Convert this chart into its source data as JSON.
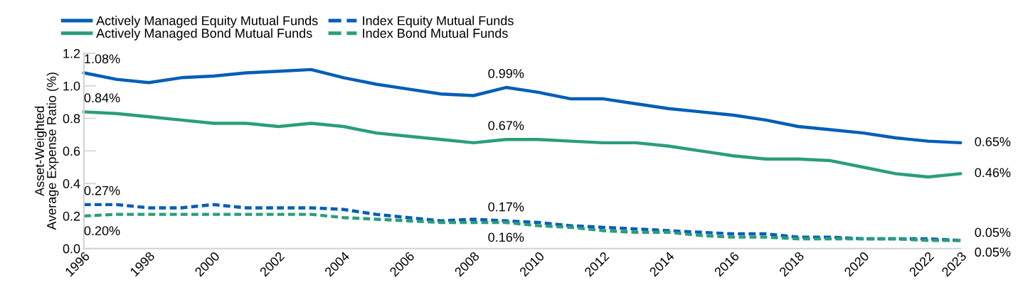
{
  "chart_data": {
    "type": "line",
    "ylabel": "Asset-Weighted\nAverage Expense Ratio (%)",
    "x": [
      1996,
      1997,
      1998,
      1999,
      2000,
      2001,
      2002,
      2003,
      2004,
      2005,
      2006,
      2007,
      2008,
      2009,
      2010,
      2011,
      2012,
      2013,
      2014,
      2015,
      2016,
      2017,
      2018,
      2019,
      2020,
      2021,
      2022,
      2023
    ],
    "series": [
      {
        "name": "Actively Managed Equity Mutual Funds",
        "color": "#005eb8",
        "line_style": "solid",
        "values": [
          1.08,
          1.04,
          1.02,
          1.05,
          1.06,
          1.08,
          1.09,
          1.1,
          1.05,
          1.01,
          0.98,
          0.95,
          0.94,
          0.99,
          0.96,
          0.92,
          0.92,
          0.89,
          0.86,
          0.84,
          0.82,
          0.79,
          0.75,
          0.73,
          0.71,
          0.68,
          0.66,
          0.65
        ]
      },
      {
        "name": "Actively Managed Bond Mutual Funds",
        "color": "#2a9d7c",
        "line_style": "solid",
        "values": [
          0.84,
          0.83,
          0.81,
          0.79,
          0.77,
          0.77,
          0.75,
          0.77,
          0.75,
          0.71,
          0.69,
          0.67,
          0.65,
          0.67,
          0.67,
          0.66,
          0.65,
          0.65,
          0.63,
          0.6,
          0.57,
          0.55,
          0.55,
          0.54,
          0.5,
          0.46,
          0.44,
          0.46
        ]
      },
      {
        "name": "Index Equity Mutual Funds",
        "color": "#005eb8",
        "line_style": "dashed",
        "values": [
          0.27,
          0.27,
          0.25,
          0.25,
          0.27,
          0.25,
          0.25,
          0.25,
          0.24,
          0.21,
          0.19,
          0.17,
          0.18,
          0.17,
          0.16,
          0.14,
          0.13,
          0.12,
          0.11,
          0.1,
          0.09,
          0.09,
          0.07,
          0.07,
          0.06,
          0.06,
          0.06,
          0.05
        ]
      },
      {
        "name": "Index Bond Mutual Funds",
        "color": "#2a9d7c",
        "line_style": "dashed",
        "values": [
          0.2,
          0.21,
          0.21,
          0.21,
          0.21,
          0.21,
          0.21,
          0.21,
          0.19,
          0.18,
          0.17,
          0.16,
          0.16,
          0.16,
          0.14,
          0.13,
          0.11,
          0.1,
          0.1,
          0.08,
          0.07,
          0.07,
          0.06,
          0.06,
          0.06,
          0.06,
          0.05,
          0.05
        ]
      }
    ],
    "xlim": [
      1996,
      2023
    ],
    "xticks": [
      1996,
      1998,
      2000,
      2002,
      2004,
      2006,
      2008,
      2010,
      2012,
      2014,
      2016,
      2018,
      2020,
      2022,
      2023
    ],
    "ylim": [
      0,
      1.2
    ],
    "yticks": [
      {
        "value": 0,
        "label": "0.0"
      },
      {
        "value": 0.2,
        "label": "0.2"
      },
      {
        "value": 0.4,
        "label": "0.4"
      },
      {
        "value": 0.6,
        "label": "0.6"
      },
      {
        "value": 0.8,
        "label": "0.8"
      },
      {
        "value": 1.0,
        "label": "1.0"
      },
      {
        "value": 1.2,
        "label": "1.2"
      }
    ],
    "grid": false,
    "legend": "top left",
    "marker": "none",
    "annotations": [
      {
        "text": "1.08%",
        "x": 1996,
        "y": 1.08
      },
      {
        "text": "0.84%",
        "x": 1996,
        "y": 0.84
      },
      {
        "text": "0.27%",
        "x": 1996,
        "y": 0.27
      },
      {
        "text": "0.20%",
        "x": 1996,
        "y": 0.2
      },
      {
        "text": "0.99%",
        "x": 2009,
        "y": 0.99
      },
      {
        "text": "0.67%",
        "x": 2009,
        "y": 0.67
      },
      {
        "text": "0.17%",
        "x": 2009,
        "y": 0.17
      },
      {
        "text": "0.16%",
        "x": 2009,
        "y": 0.16
      },
      {
        "text": "0.65%",
        "x": 2023,
        "y": 0.65
      },
      {
        "text": "0.46%",
        "x": 2023,
        "y": 0.46
      },
      {
        "text": "0.05%",
        "x": 2023,
        "y": 0.05
      },
      {
        "text": "0.05%",
        "x": 2023,
        "y": 0.05
      }
    ]
  }
}
